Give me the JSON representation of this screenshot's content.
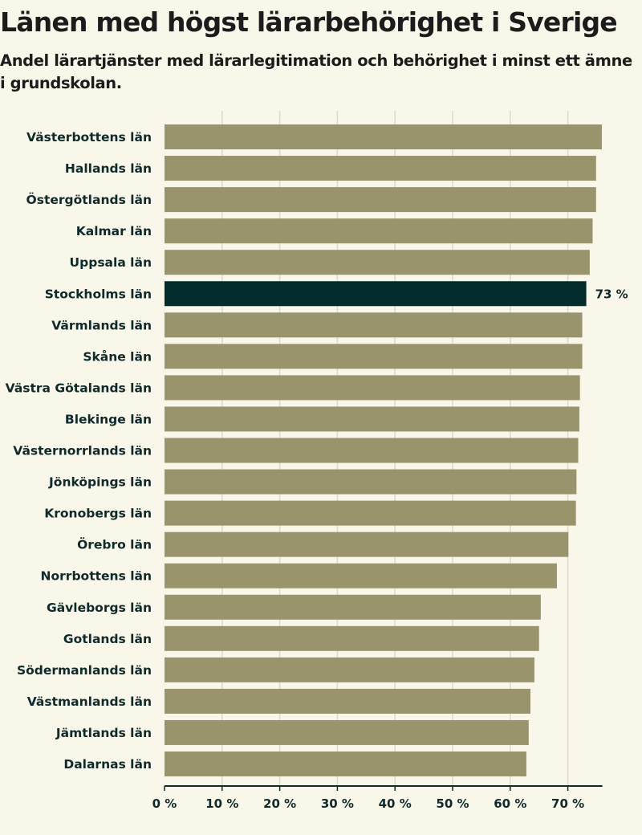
{
  "header": {
    "title": "Länen med högst lärarbehörighet i Sverige",
    "subtitle": "Andel lärartjänster med lärarlegitimation och behörighet i minst ett ämne i grundskolan."
  },
  "colors": {
    "background": "#f9f6ea",
    "bar": "#9a946c",
    "highlight": "#042b2b",
    "grid": "#dcdacb",
    "axis": "#0e2a2a",
    "text": "#0e2a2a"
  },
  "chart_data": {
    "type": "bar",
    "orientation": "horizontal",
    "title": "Länen med högst lärarbehörighet i Sverige",
    "subtitle": "Andel lärartjänster med lärarlegitimation och behörighet i minst ett ämne i grundskolan.",
    "xlabel": "",
    "ylabel": "",
    "xlim": [
      0,
      76
    ],
    "grid": true,
    "ticks": [
      0,
      10,
      20,
      30,
      40,
      50,
      60,
      70
    ],
    "tick_labels": [
      "0 %",
      "10 %",
      "20 %",
      "30 %",
      "40 %",
      "50 %",
      "60 %",
      "70 %"
    ],
    "categories": [
      "Västerbottens län",
      "Hallands län",
      "Östergötlands län",
      "Kalmar län",
      "Uppsala län",
      "Stockholms län",
      "Värmlands län",
      "Skåne län",
      "Västra Götalands län",
      "Blekinge län",
      "Västernorrlands län",
      "Jönköpings län",
      "Kronobergs län",
      "Örebro län",
      "Norrbottens län",
      "Gävleborgs län",
      "Gotlands län",
      "Södermanlands län",
      "Västmanlands län",
      "Jämtlands län",
      "Dalarnas län"
    ],
    "values": [
      75.9,
      74.9,
      74.9,
      74.3,
      73.8,
      73.2,
      72.5,
      72.5,
      72.1,
      72.0,
      71.8,
      71.5,
      71.4,
      70.1,
      68.1,
      65.3,
      65.0,
      64.2,
      63.5,
      63.2,
      62.8
    ],
    "highlight": {
      "category": "Stockholms län",
      "label": "73 %"
    }
  }
}
